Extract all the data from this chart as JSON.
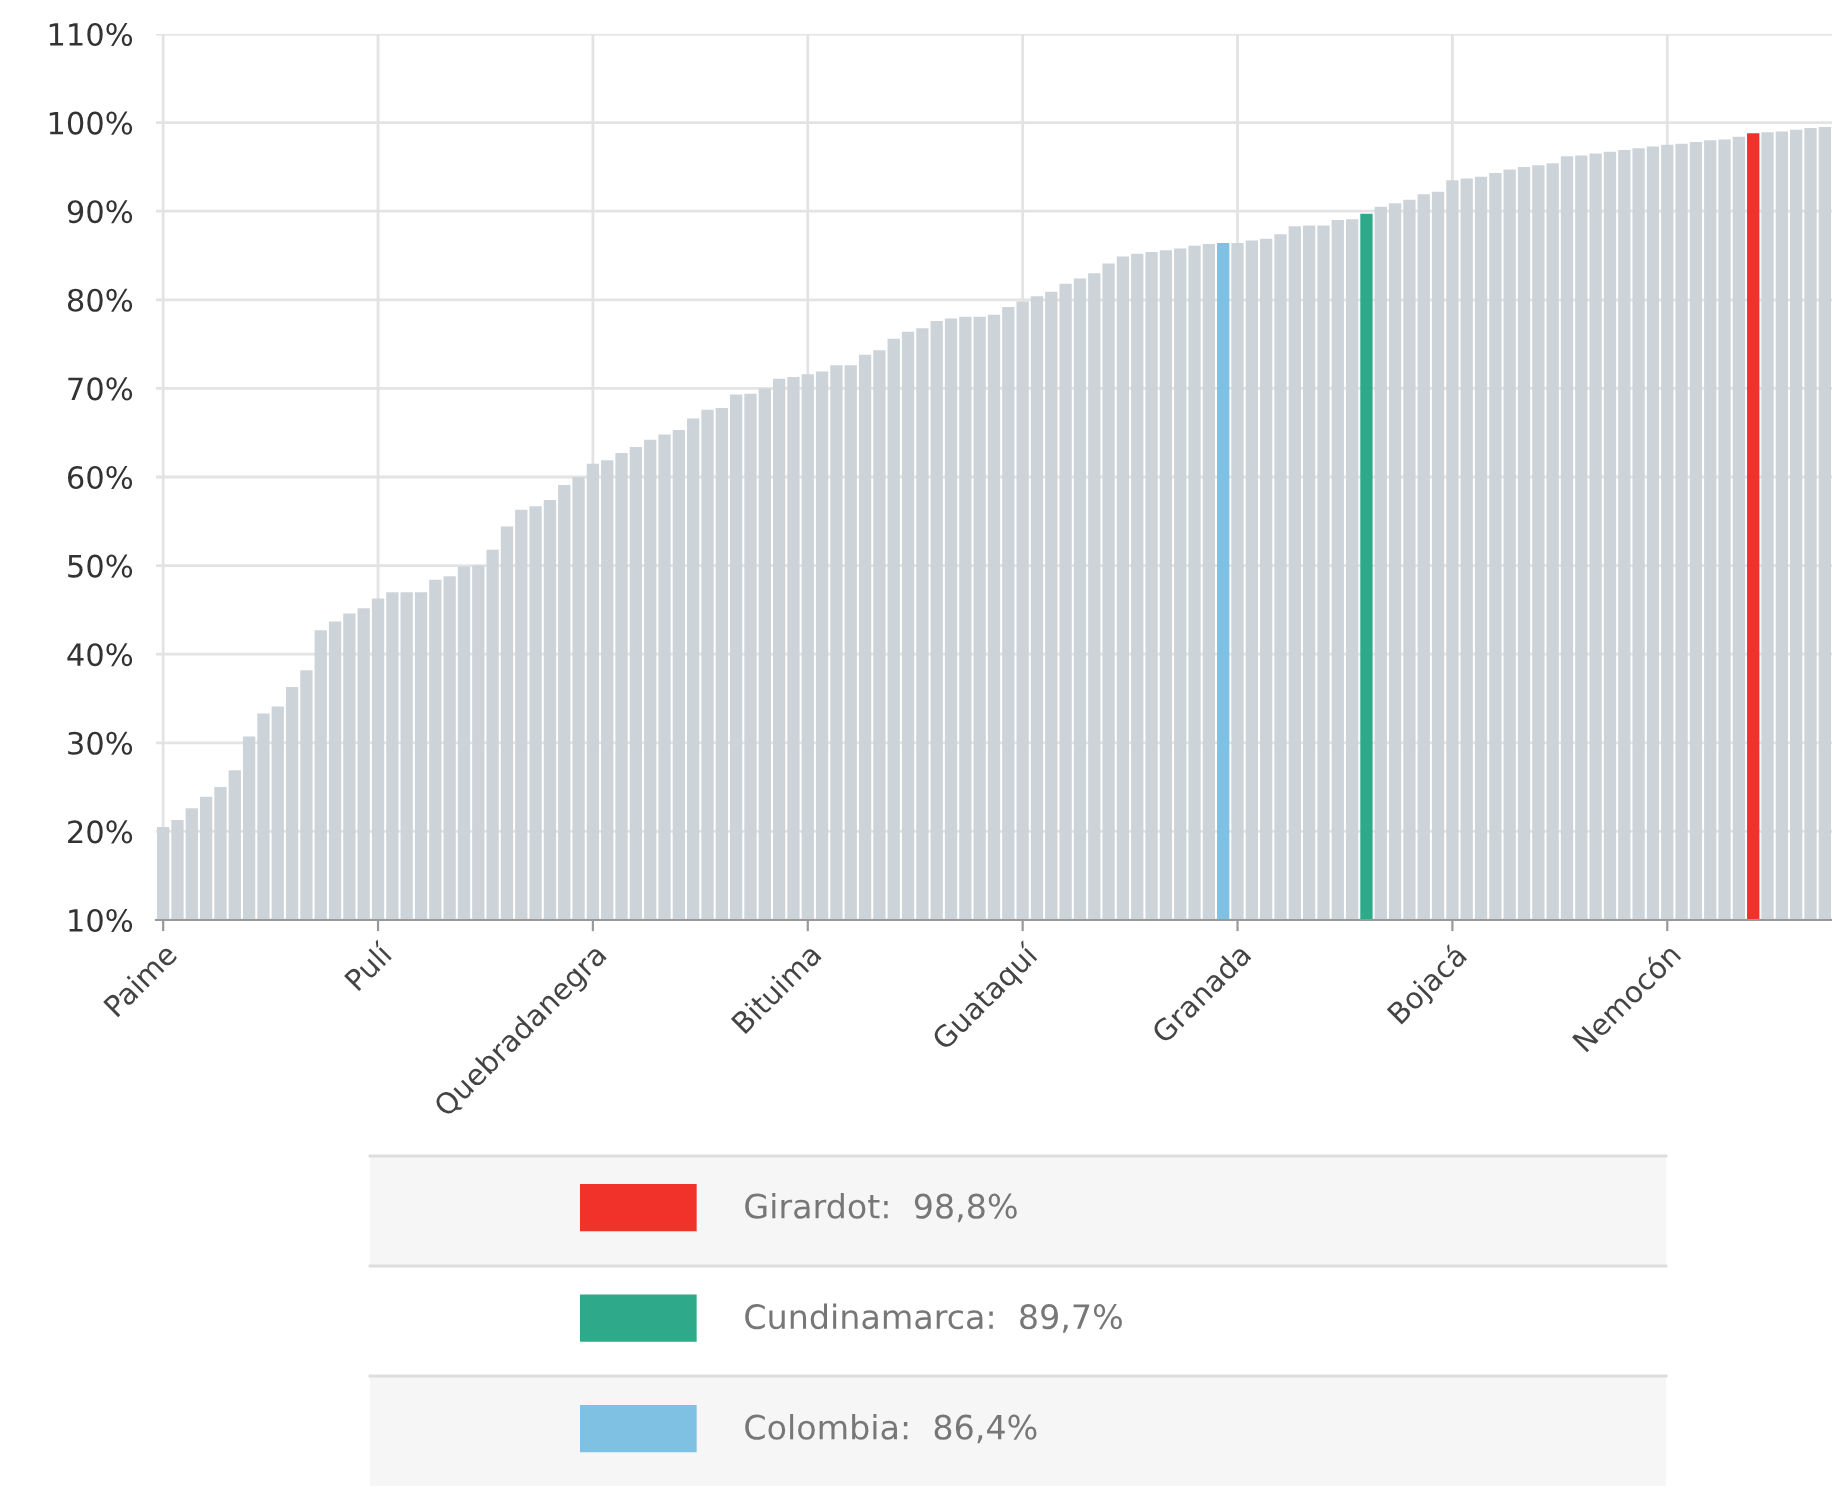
{
  "chart_data": {
    "type": "bar",
    "categories": [
      "Paime",
      null,
      null,
      null,
      null,
      null,
      null,
      null,
      null,
      null,
      null,
      null,
      null,
      null,
      null,
      "Pulí",
      null,
      null,
      null,
      null,
      null,
      null,
      null,
      null,
      null,
      null,
      null,
      null,
      null,
      null,
      "Quebradanegra",
      null,
      null,
      null,
      null,
      null,
      null,
      null,
      null,
      null,
      null,
      null,
      null,
      null,
      null,
      "Bituima",
      null,
      null,
      null,
      null,
      null,
      null,
      null,
      null,
      null,
      null,
      null,
      null,
      null,
      null,
      "Guataquí",
      null,
      null,
      null,
      null,
      null,
      null,
      null,
      null,
      null,
      null,
      null,
      null,
      null,
      null,
      "Granada",
      null,
      null,
      null,
      null,
      null,
      null,
      null,
      null,
      null,
      null,
      null,
      null,
      null,
      null,
      "Bojacá",
      null,
      null,
      null,
      null,
      null,
      null,
      null,
      null,
      null,
      null,
      null,
      null,
      null,
      null,
      "Nemocón",
      null,
      null,
      null,
      null,
      null,
      null,
      null,
      null,
      null,
      null,
      null
    ],
    "series": [
      {
        "color": "#cdd4d9",
        "values": [
          20.5,
          21.3,
          22.6,
          23.9,
          25.0,
          26.9,
          30.7,
          33.3,
          34.1,
          36.3,
          38.2,
          42.7,
          43.7,
          44.6,
          45.2,
          46.3,
          47.0,
          47.0,
          47.0,
          48.4,
          48.8,
          49.9,
          50.0,
          51.8,
          54.4,
          56.3,
          56.7,
          57.4,
          59.1,
          60.0,
          61.5,
          61.9,
          62.7,
          63.4,
          64.2,
          64.8,
          65.3,
          66.6,
          67.6,
          67.8,
          69.3,
          69.4,
          70.0,
          71.1,
          71.3,
          71.6,
          71.9,
          72.6,
          72.6,
          73.8,
          74.3,
          75.6,
          76.4,
          76.8,
          77.6,
          77.9,
          78.1,
          78.1,
          78.3,
          79.2,
          79.8,
          80.4,
          80.9,
          81.8,
          82.4,
          83.0,
          84.1,
          84.9,
          85.2,
          85.4,
          85.6,
          85.8,
          86.1,
          86.3,
          null,
          86.4,
          86.7,
          86.9,
          87.4,
          88.3,
          88.4,
          88.4,
          89.0,
          89.1,
          null,
          90.5,
          90.9,
          91.3,
          91.9,
          92.2,
          93.5,
          93.7,
          93.9,
          94.3,
          94.7,
          95.0,
          95.2,
          95.4,
          96.2,
          96.3,
          96.5,
          96.7,
          96.9,
          97.1,
          97.3,
          97.5,
          97.6,
          97.8,
          98.0,
          98.1,
          98.4,
          null,
          98.9,
          99.0,
          99.2,
          99.4,
          99.5
        ]
      },
      {
        "name": "Girardot:  98,8%",
        "color": "#f0322a",
        "values": [
          null,
          null,
          null,
          null,
          null,
          null,
          null,
          null,
          null,
          null,
          null,
          null,
          null,
          null,
          null,
          null,
          null,
          null,
          null,
          null,
          null,
          null,
          null,
          null,
          null,
          null,
          null,
          null,
          null,
          null,
          null,
          null,
          null,
          null,
          null,
          null,
          null,
          null,
          null,
          null,
          null,
          null,
          null,
          null,
          null,
          null,
          null,
          null,
          null,
          null,
          null,
          null,
          null,
          null,
          null,
          null,
          null,
          null,
          null,
          null,
          null,
          null,
          null,
          null,
          null,
          null,
          null,
          null,
          null,
          null,
          null,
          null,
          null,
          null,
          null,
          null,
          null,
          null,
          null,
          null,
          null,
          null,
          null,
          null,
          null,
          null,
          null,
          null,
          null,
          null,
          null,
          null,
          null,
          null,
          null,
          null,
          null,
          null,
          null,
          null,
          null,
          null,
          null,
          null,
          null,
          null,
          null,
          null,
          null,
          null,
          null,
          98.8,
          null,
          null,
          null,
          null,
          null
        ]
      },
      {
        "name": "Cundinamarca:  89,7%",
        "color": "#2eaa8a",
        "values": [
          null,
          null,
          null,
          null,
          null,
          null,
          null,
          null,
          null,
          null,
          null,
          null,
          null,
          null,
          null,
          null,
          null,
          null,
          null,
          null,
          null,
          null,
          null,
          null,
          null,
          null,
          null,
          null,
          null,
          null,
          null,
          null,
          null,
          null,
          null,
          null,
          null,
          null,
          null,
          null,
          null,
          null,
          null,
          null,
          null,
          null,
          null,
          null,
          null,
          null,
          null,
          null,
          null,
          null,
          null,
          null,
          null,
          null,
          null,
          null,
          null,
          null,
          null,
          null,
          null,
          null,
          null,
          null,
          null,
          null,
          null,
          null,
          null,
          null,
          null,
          null,
          null,
          null,
          null,
          null,
          null,
          null,
          null,
          null,
          89.7,
          null,
          null,
          null,
          null,
          null,
          null,
          null,
          null,
          null,
          null,
          null,
          null,
          null,
          null,
          null,
          null,
          null,
          null,
          null,
          null,
          null,
          null,
          null,
          null,
          null,
          null,
          null,
          null,
          null,
          null,
          null,
          null
        ]
      },
      {
        "name": "Colombia:  86,4%",
        "color": "#7fc1e3",
        "values": [
          null,
          null,
          null,
          null,
          null,
          null,
          null,
          null,
          null,
          null,
          null,
          null,
          null,
          null,
          null,
          null,
          null,
          null,
          null,
          null,
          null,
          null,
          null,
          null,
          null,
          null,
          null,
          null,
          null,
          null,
          null,
          null,
          null,
          null,
          null,
          null,
          null,
          null,
          null,
          null,
          null,
          null,
          null,
          null,
          null,
          null,
          null,
          null,
          null,
          null,
          null,
          null,
          null,
          null,
          null,
          null,
          null,
          null,
          null,
          null,
          null,
          null,
          null,
          null,
          null,
          null,
          null,
          null,
          null,
          null,
          null,
          null,
          null,
          null,
          86.4,
          null,
          null,
          null,
          null,
          null,
          null,
          null,
          null,
          null,
          null,
          null,
          null,
          null,
          null,
          null,
          null,
          null,
          null,
          null,
          null,
          null,
          null,
          null,
          null,
          null,
          null,
          null,
          null,
          null,
          null,
          null,
          null,
          null,
          null,
          null,
          null,
          null,
          null,
          null,
          null,
          null,
          null
        ]
      }
    ],
    "ylim": [
      10,
      110
    ],
    "yticks": [
      {
        "value": 10,
        "label": "10%"
      },
      {
        "value": 20,
        "label": "20%"
      },
      {
        "value": 30,
        "label": "30%"
      },
      {
        "value": 40,
        "label": "40%"
      },
      {
        "value": 50,
        "label": "50%"
      },
      {
        "value": 60,
        "label": "60%"
      },
      {
        "value": 70,
        "label": "70%"
      },
      {
        "value": 80,
        "label": "80%"
      },
      {
        "value": 90,
        "label": "90%"
      },
      {
        "value": 100,
        "label": "100%"
      },
      {
        "value": 110,
        "label": "110%"
      }
    ],
    "grid": true,
    "legend": "bottom"
  }
}
